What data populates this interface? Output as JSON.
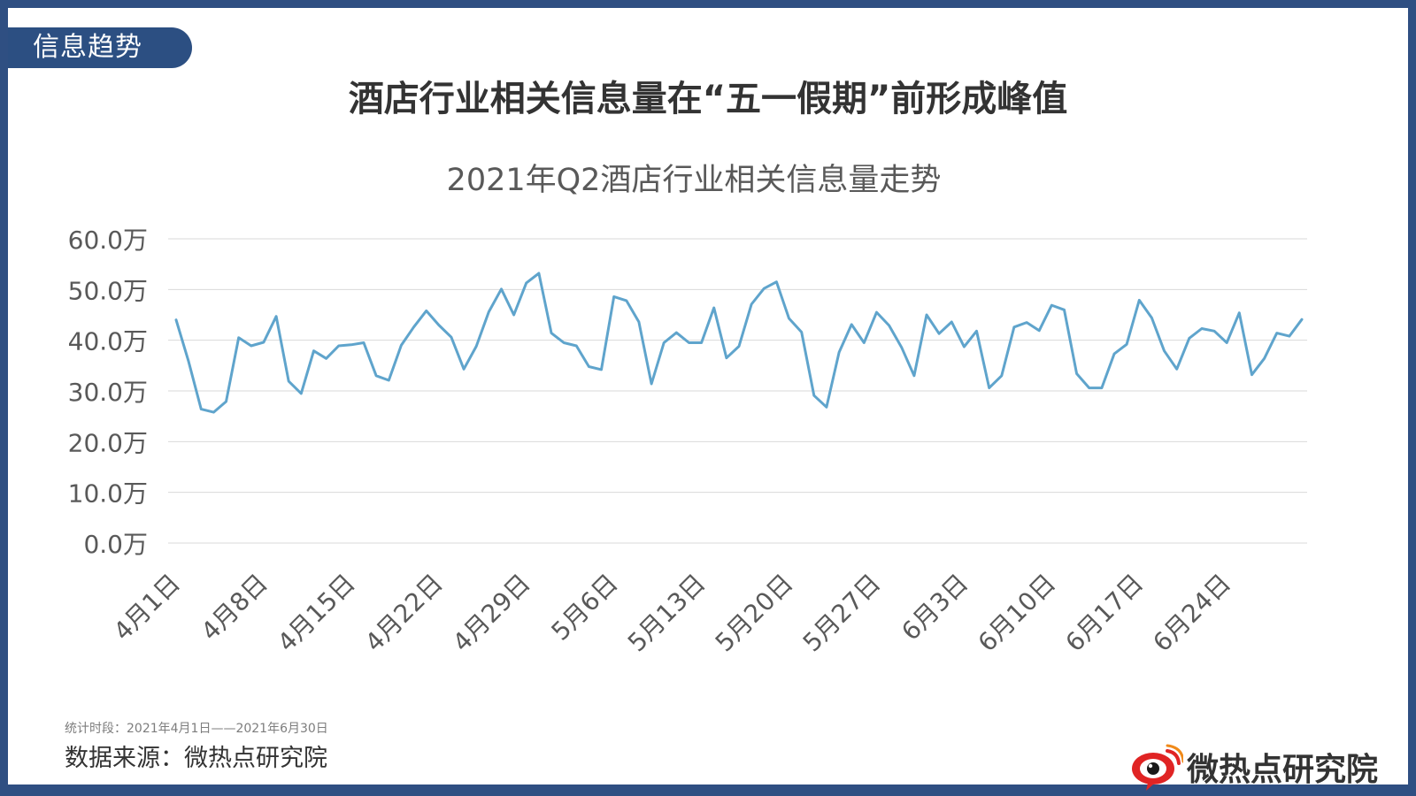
{
  "tag": "信息趋势",
  "headline": "酒店行业相关信息量在“五一假期”前形成峰值",
  "footer": {
    "period": "统计时段：2021年4月1日——2021年6月30日",
    "source": "数据来源：微热点研究院",
    "brand": "微热点研究院"
  },
  "colors": {
    "frame": "#2f4f82",
    "line": "#5fa4cc",
    "grid": "#d9d9d9",
    "logo": "#e02424"
  },
  "chart_data": {
    "type": "line",
    "title": "2021年Q2酒店行业相关信息量走势",
    "y_tick_labels": [
      "0.0万",
      "10.0万",
      "20.0万",
      "30.0万",
      "40.0万",
      "50.0万",
      "60.0万"
    ],
    "ylim": [
      0,
      60
    ],
    "y_unit": "万",
    "x_tick_labels": [
      "4月1日",
      "4月8日",
      "4月15日",
      "4月22日",
      "4月29日",
      "5月6日",
      "5月13日",
      "5月20日",
      "5月27日",
      "6月3日",
      "6月10日",
      "6月17日",
      "6月24日"
    ],
    "grid": true,
    "legend": "none",
    "series": [
      {
        "values": [
          44.0,
          35.8,
          26.4,
          25.8,
          27.9,
          40.5,
          38.9,
          39.6,
          44.7,
          31.9,
          29.5,
          37.9,
          36.4,
          38.9,
          39.1,
          39.5,
          33.0,
          32.1,
          39.0,
          42.6,
          45.8,
          43.0,
          40.6,
          34.3,
          38.8,
          45.6,
          50.1,
          45.0,
          51.3,
          53.2,
          41.4,
          39.5,
          38.9,
          34.8,
          34.2,
          48.6,
          47.8,
          43.6,
          31.4,
          39.5,
          41.5,
          39.5,
          39.5,
          46.4,
          36.5,
          38.8,
          47.1,
          50.2,
          51.5,
          44.3,
          41.6,
          29.1,
          26.8,
          37.6,
          43.1,
          39.5,
          45.5,
          42.9,
          38.6,
          33.0,
          45.0,
          41.3,
          43.6,
          38.7,
          41.8,
          30.6,
          33.0,
          42.6,
          43.5,
          41.9,
          46.9,
          46.0,
          33.4,
          30.6,
          30.6,
          37.3,
          39.2,
          47.9,
          44.4,
          37.9,
          34.3,
          40.4,
          42.3,
          41.8,
          39.5,
          45.4,
          33.2,
          36.4,
          41.4,
          40.8,
          44.1
        ]
      }
    ]
  }
}
